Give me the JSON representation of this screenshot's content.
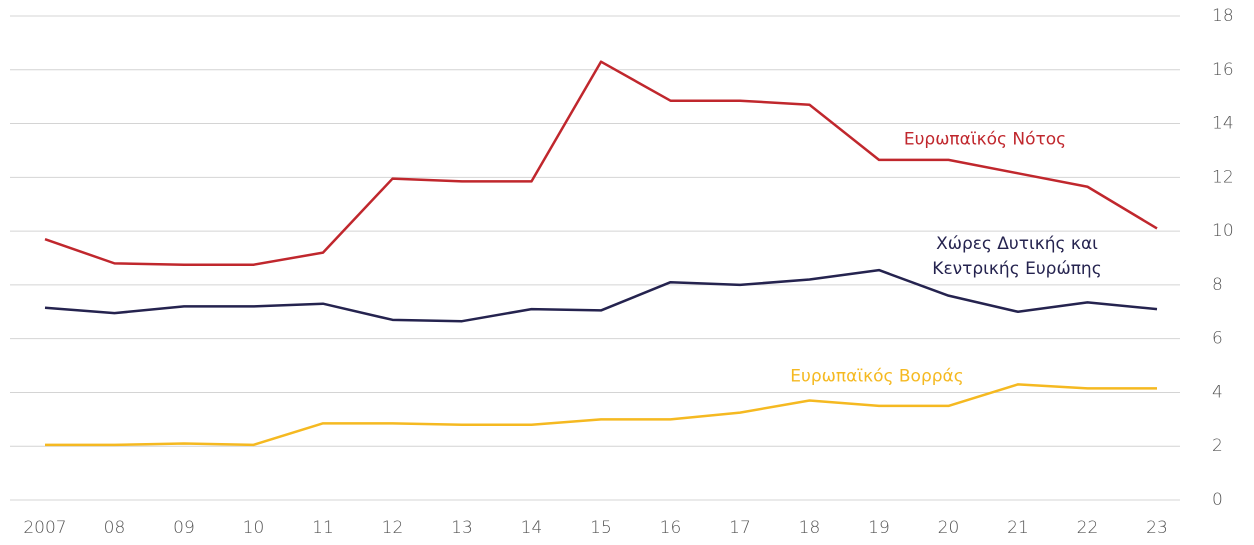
{
  "chart_data": {
    "type": "line",
    "categories": [
      "2007",
      "08",
      "09",
      "10",
      "11",
      "12",
      "13",
      "14",
      "15",
      "16",
      "17",
      "18",
      "19",
      "20",
      "21",
      "22",
      "23"
    ],
    "series": [
      {
        "name": "Ευρωπαϊκός Νότος",
        "color": "#c0272d",
        "values": [
          9.7,
          8.8,
          8.75,
          8.75,
          9.2,
          11.95,
          11.85,
          11.85,
          16.3,
          14.85,
          14.85,
          14.7,
          12.65,
          12.65,
          12.15,
          11.65,
          10.1
        ]
      },
      {
        "name": "Χώρες Δυτικής και Κεντρικής Ευρώπης",
        "color": "#25234f",
        "values": [
          7.15,
          6.95,
          7.2,
          7.2,
          7.3,
          6.7,
          6.65,
          7.1,
          7.05,
          8.1,
          8.0,
          8.2,
          8.55,
          7.6,
          7.0,
          7.35,
          7.1
        ]
      },
      {
        "name": "Ευρωπαϊκός Βορράς",
        "color": "#f5b921",
        "values": [
          2.05,
          2.05,
          2.1,
          2.05,
          2.85,
          2.85,
          2.8,
          2.8,
          3.0,
          3.0,
          3.25,
          3.7,
          3.5,
          3.5,
          4.3,
          4.15,
          4.15
        ]
      }
    ],
    "ylim": [
      0,
      18
    ],
    "yticks": [
      0,
      2,
      4,
      6,
      8,
      10,
      12,
      14,
      16,
      18
    ],
    "grid": true,
    "y_axis_side": "right"
  }
}
